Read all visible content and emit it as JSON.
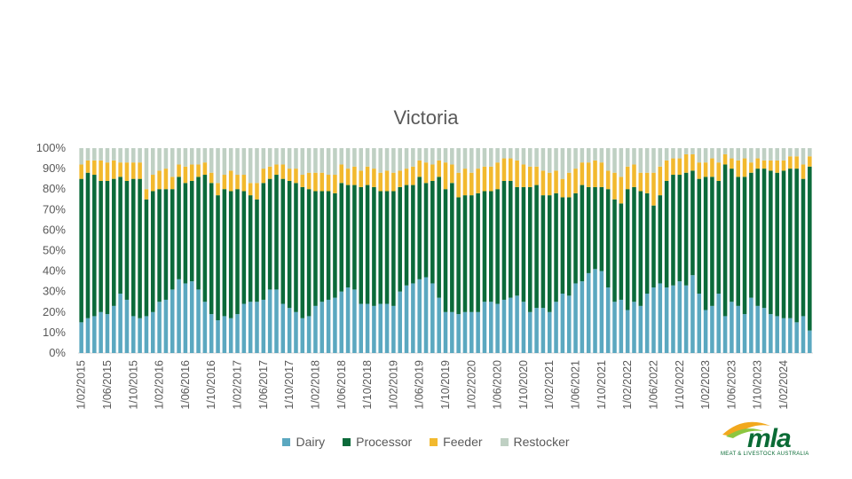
{
  "chart_data": {
    "type": "bar",
    "stacked": true,
    "normalized": true,
    "title": "Victoria",
    "xlabel": "",
    "ylabel": "",
    "ylim": [
      0,
      100
    ],
    "y_ticks": [
      "0%",
      "10%",
      "20%",
      "30%",
      "40%",
      "50%",
      "60%",
      "70%",
      "80%",
      "90%",
      "100%"
    ],
    "grid": false,
    "legend_position": "bottom",
    "x_tick_labels": [
      "1/02/2015",
      "1/06/2015",
      "1/10/2015",
      "1/02/2016",
      "1/06/2016",
      "1/10/2016",
      "1/02/2017",
      "1/06/2017",
      "1/10/2017",
      "1/02/2018",
      "1/06/2018",
      "1/10/2018",
      "1/02/2019",
      "1/06/2019",
      "1/10/2019",
      "1/02/2020",
      "1/06/2020",
      "1/10/2020",
      "1/02/2021",
      "1/06/2021",
      "1/10/2021",
      "1/02/2022",
      "1/06/2022",
      "1/10/2022",
      "1/02/2023",
      "1/06/2023",
      "1/10/2023",
      "1/02/2024"
    ],
    "colors": {
      "Dairy": "#5ba8c0",
      "Processor": "#0b6a3a",
      "Feeder": "#f2b92e",
      "Restocker": "#bfd0c3"
    },
    "series": [
      {
        "name": "Dairy",
        "values": [
          15,
          17,
          18,
          20,
          19,
          23,
          29,
          26,
          18,
          17,
          18,
          20,
          25,
          26,
          31,
          36,
          34,
          35,
          31,
          25,
          19,
          16,
          18,
          17,
          19,
          24,
          25,
          25,
          26,
          31,
          31,
          24,
          22,
          20,
          17,
          18,
          23,
          25,
          26,
          27,
          30,
          32,
          31,
          24,
          24,
          23,
          24,
          24,
          23,
          30,
          33,
          34,
          36,
          37,
          34,
          27,
          20,
          20,
          19,
          20,
          20,
          20,
          25,
          25,
          24,
          26,
          27,
          28,
          25,
          20,
          22,
          22,
          20,
          25,
          29,
          28,
          34,
          35,
          39,
          41,
          40,
          32,
          25,
          26,
          21,
          25,
          23,
          29,
          32,
          34,
          32,
          33,
          35,
          33,
          38,
          29,
          21,
          23,
          29,
          18,
          25,
          23,
          19,
          27,
          23,
          22,
          19,
          18,
          17,
          17,
          15,
          18,
          11
        ]
      },
      {
        "name": "Processor",
        "values": [
          70,
          71,
          69,
          64,
          65,
          62,
          57,
          58,
          67,
          68,
          57,
          59,
          55,
          54,
          49,
          50,
          49,
          49,
          55,
          62,
          64,
          61,
          62,
          62,
          61,
          55,
          52,
          50,
          57,
          54,
          56,
          61,
          62,
          63,
          64,
          62,
          56,
          54,
          53,
          51,
          53,
          50,
          51,
          57,
          58,
          58,
          55,
          55,
          56,
          51,
          49,
          48,
          50,
          46,
          50,
          59,
          60,
          63,
          57,
          57,
          57,
          58,
          54,
          54,
          56,
          58,
          57,
          53,
          56,
          61,
          60,
          55,
          57,
          53,
          47,
          48,
          44,
          47,
          42,
          40,
          41,
          48,
          50,
          47,
          59,
          56,
          56,
          49,
          40,
          43,
          52,
          54,
          52,
          55,
          51,
          56,
          65,
          63,
          55,
          74,
          65,
          63,
          67,
          61,
          67,
          68,
          70,
          70,
          72,
          73,
          75,
          67,
          80
        ]
      },
      {
        "name": "Feeder",
        "values": [
          7,
          6,
          7,
          10,
          9,
          9,
          7,
          9,
          8,
          8,
          5,
          8,
          9,
          10,
          6,
          6,
          8,
          8,
          6,
          6,
          5,
          6,
          7,
          10,
          7,
          8,
          6,
          8,
          7,
          6,
          5,
          7,
          6,
          7,
          6,
          8,
          9,
          9,
          8,
          9,
          9,
          8,
          9,
          8,
          9,
          9,
          9,
          10,
          9,
          8,
          8,
          9,
          8,
          10,
          8,
          8,
          13,
          9,
          12,
          13,
          11,
          12,
          12,
          12,
          13,
          11,
          11,
          13,
          11,
          10,
          9,
          12,
          11,
          11,
          9,
          12,
          12,
          11,
          12,
          13,
          12,
          9,
          13,
          13,
          11,
          11,
          9,
          10,
          16,
          14,
          10,
          8,
          8,
          9,
          8,
          8,
          7,
          9,
          9,
          5,
          5,
          8,
          9,
          5,
          5,
          4,
          5,
          6,
          5,
          6,
          6,
          7,
          5
        ]
      },
      {
        "name": "Restocker",
        "values": [
          8,
          6,
          6,
          6,
          7,
          6,
          7,
          7,
          7,
          7,
          20,
          13,
          11,
          10,
          14,
          8,
          9,
          8,
          8,
          7,
          12,
          17,
          13,
          11,
          13,
          13,
          17,
          17,
          10,
          9,
          8,
          8,
          10,
          10,
          13,
          12,
          12,
          12,
          13,
          13,
          8,
          10,
          9,
          11,
          9,
          10,
          12,
          11,
          12,
          11,
          10,
          9,
          6,
          7,
          8,
          6,
          7,
          8,
          12,
          10,
          12,
          10,
          9,
          9,
          7,
          5,
          5,
          6,
          8,
          9,
          9,
          11,
          12,
          11,
          15,
          12,
          10,
          7,
          7,
          6,
          7,
          11,
          12,
          14,
          9,
          8,
          12,
          12,
          12,
          9,
          6,
          5,
          5,
          3,
          3,
          7,
          7,
          5,
          7,
          3,
          5,
          6,
          5,
          7,
          5,
          6,
          6,
          6,
          6,
          4,
          4,
          8,
          4
        ]
      }
    ]
  },
  "legend": {
    "dairy": "Dairy",
    "processor": "Processor",
    "feeder": "Feeder",
    "restocker": "Restocker"
  },
  "logo": {
    "name": "mla",
    "tagline": "MEAT & LIVESTOCK AUSTRALIA"
  }
}
